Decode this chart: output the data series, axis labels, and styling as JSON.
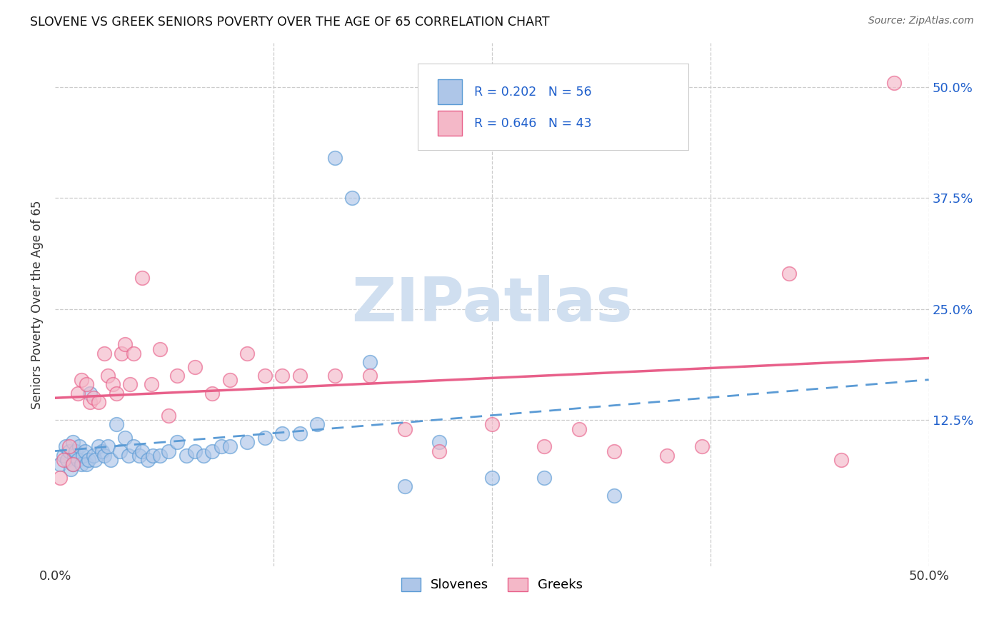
{
  "title": "SLOVENE VS GREEK SENIORS POVERTY OVER THE AGE OF 65 CORRELATION CHART",
  "source": "Source: ZipAtlas.com",
  "ylabel": "Seniors Poverty Over the Age of 65",
  "xlim": [
    0.0,
    0.5
  ],
  "ylim": [
    -0.04,
    0.55
  ],
  "xtick_positions": [
    0.0,
    0.125,
    0.25,
    0.375,
    0.5
  ],
  "xtick_labels": [
    "0.0%",
    "",
    "",
    "",
    "50.0%"
  ],
  "ytick_positions": [
    0.0,
    0.125,
    0.25,
    0.375,
    0.5
  ],
  "ytick_labels_right": [
    "",
    "12.5%",
    "25.0%",
    "37.5%",
    "50.0%"
  ],
  "color_slovene_fill": "#aec6e8",
  "color_slovene_edge": "#5b9bd5",
  "color_greek_fill": "#f4b8c8",
  "color_greek_edge": "#e8608a",
  "color_slovene_line": "#5b9bd5",
  "color_greek_line": "#e8608a",
  "color_legend_text": "#2060cc",
  "color_grid": "#cccccc",
  "watermark_text": "ZIPatlas",
  "watermark_color": "#d0dff0",
  "legend_text_line1": "R = 0.202   N = 56",
  "legend_text_line2": "R = 0.646   N = 43",
  "slovene_x": [
    0.003,
    0.005,
    0.006,
    0.007,
    0.008,
    0.009,
    0.01,
    0.01,
    0.011,
    0.012,
    0.013,
    0.014,
    0.015,
    0.016,
    0.017,
    0.018,
    0.019,
    0.02,
    0.022,
    0.023,
    0.025,
    0.027,
    0.028,
    0.03,
    0.032,
    0.035,
    0.037,
    0.04,
    0.042,
    0.045,
    0.048,
    0.05,
    0.053,
    0.056,
    0.06,
    0.065,
    0.07,
    0.075,
    0.08,
    0.085,
    0.09,
    0.095,
    0.1,
    0.11,
    0.12,
    0.13,
    0.14,
    0.15,
    0.16,
    0.17,
    0.18,
    0.2,
    0.22,
    0.25,
    0.28,
    0.32
  ],
  "slovene_y": [
    0.075,
    0.085,
    0.095,
    0.08,
    0.09,
    0.07,
    0.075,
    0.1,
    0.085,
    0.09,
    0.08,
    0.095,
    0.075,
    0.085,
    0.09,
    0.075,
    0.08,
    0.155,
    0.085,
    0.08,
    0.095,
    0.09,
    0.085,
    0.095,
    0.08,
    0.12,
    0.09,
    0.105,
    0.085,
    0.095,
    0.085,
    0.09,
    0.08,
    0.085,
    0.085,
    0.09,
    0.1,
    0.085,
    0.09,
    0.085,
    0.09,
    0.095,
    0.095,
    0.1,
    0.105,
    0.11,
    0.11,
    0.12,
    0.42,
    0.375,
    0.19,
    0.05,
    0.1,
    0.06,
    0.06,
    0.04
  ],
  "greek_x": [
    0.003,
    0.005,
    0.008,
    0.01,
    0.013,
    0.015,
    0.018,
    0.02,
    0.022,
    0.025,
    0.028,
    0.03,
    0.033,
    0.035,
    0.038,
    0.04,
    0.043,
    0.045,
    0.05,
    0.055,
    0.06,
    0.065,
    0.07,
    0.08,
    0.09,
    0.1,
    0.11,
    0.12,
    0.13,
    0.14,
    0.16,
    0.18,
    0.2,
    0.22,
    0.25,
    0.28,
    0.3,
    0.32,
    0.35,
    0.37,
    0.42,
    0.45,
    0.48
  ],
  "greek_y": [
    0.06,
    0.08,
    0.095,
    0.075,
    0.155,
    0.17,
    0.165,
    0.145,
    0.15,
    0.145,
    0.2,
    0.175,
    0.165,
    0.155,
    0.2,
    0.21,
    0.165,
    0.2,
    0.285,
    0.165,
    0.205,
    0.13,
    0.175,
    0.185,
    0.155,
    0.17,
    0.2,
    0.175,
    0.175,
    0.175,
    0.175,
    0.175,
    0.115,
    0.09,
    0.12,
    0.095,
    0.115,
    0.09,
    0.085,
    0.095,
    0.29,
    0.08,
    0.505
  ]
}
